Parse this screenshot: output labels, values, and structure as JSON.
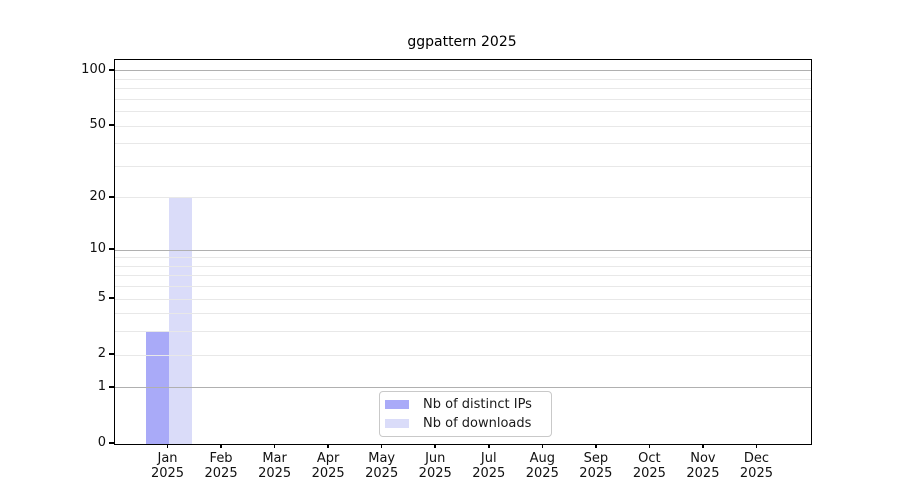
{
  "chart_data": {
    "type": "bar",
    "title": "ggpattern 2025",
    "categories": [
      "Jan",
      "Feb",
      "Mar",
      "Apr",
      "May",
      "Jun",
      "Jul",
      "Aug",
      "Sep",
      "Oct",
      "Nov",
      "Dec"
    ],
    "category_year": "2025",
    "series": [
      {
        "name": "Nb of distinct IPs",
        "color": "#a9aaf8",
        "values": [
          3,
          0,
          0,
          0,
          0,
          0,
          0,
          0,
          0,
          0,
          0,
          0
        ]
      },
      {
        "name": "Nb of downloads",
        "color": "#dadcf9",
        "values": [
          20,
          0,
          0,
          0,
          0,
          0,
          0,
          0,
          0,
          0,
          0,
          0
        ]
      }
    ],
    "y_scale": "log1p",
    "ylim": [
      0,
      116
    ],
    "y_ticks": [
      0,
      1,
      2,
      5,
      10,
      20,
      50,
      100
    ],
    "grid": {
      "major": [
        1,
        10,
        100
      ],
      "minor": [
        2,
        3,
        4,
        5,
        6,
        7,
        8,
        9,
        20,
        30,
        40,
        50,
        60,
        70,
        80,
        90
      ]
    },
    "grid_over_bars": true,
    "legend_position": "bottom-center-inside",
    "colors": {
      "axis": "#000000",
      "major_grid": "#b0b0b0",
      "minor_grid": "#e8e8e8",
      "background": "#ffffff"
    }
  }
}
